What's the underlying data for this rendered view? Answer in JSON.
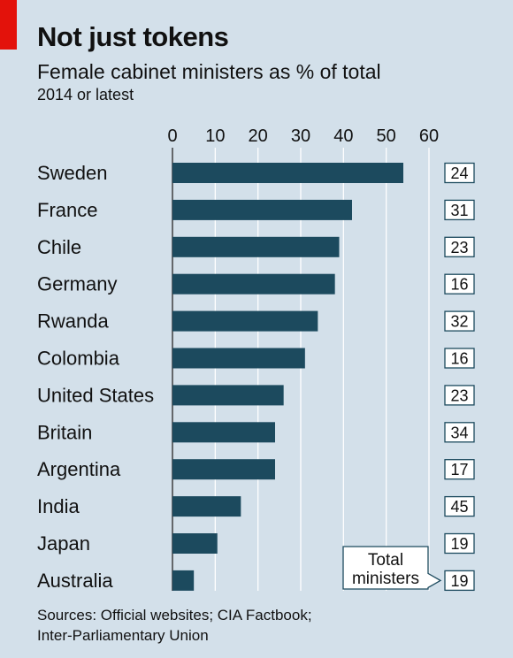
{
  "title": "Not just tokens",
  "subtitle": "Female cabinet ministers as % of total",
  "subsubtitle": "2014 or latest",
  "source_lines": [
    "Sources: Official websites; CIA Factbook;",
    "Inter-Parliamentary Union"
  ],
  "legend_label": [
    "Total",
    "ministers"
  ],
  "colors": {
    "background": "#d3e0ea",
    "bar": "#1c4a5e",
    "accent": "#e3120b",
    "box_bg": "#ffffff",
    "box_border": "#1c4a5e"
  },
  "chart_data": {
    "type": "bar",
    "orientation": "horizontal",
    "categories": [
      "Sweden",
      "France",
      "Chile",
      "Germany",
      "Rwanda",
      "Colombia",
      "United States",
      "Britain",
      "Argentina",
      "India",
      "Japan",
      "Australia"
    ],
    "values": [
      54,
      42,
      39,
      38,
      34,
      31,
      26,
      24,
      24,
      16,
      10.5,
      5
    ],
    "total_ministers": [
      24,
      31,
      23,
      16,
      32,
      16,
      23,
      34,
      17,
      45,
      19,
      19
    ],
    "xlim": [
      0,
      60
    ],
    "xticks": [
      0,
      10,
      20,
      30,
      40,
      50,
      60
    ],
    "grid": true
  }
}
